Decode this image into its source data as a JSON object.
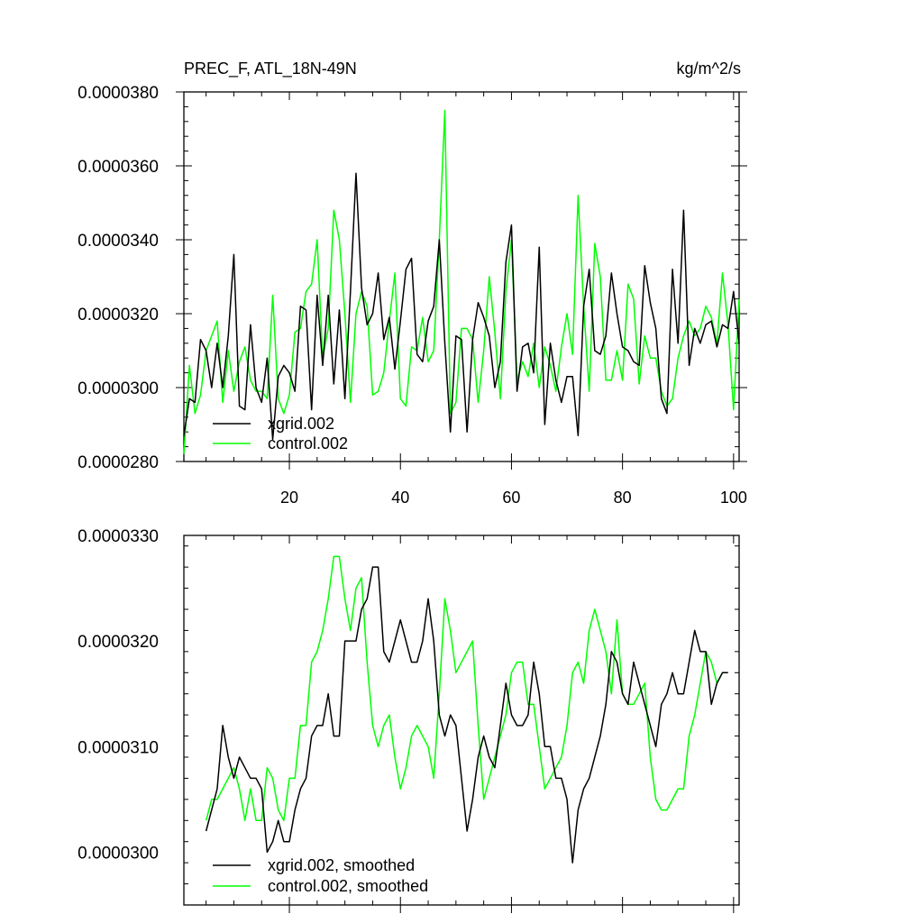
{
  "chart_data": [
    {
      "type": "line",
      "title": "PREC_F, ATL_18N-49N",
      "units": "kg/m^2/s",
      "xlabel": "",
      "ylabel": "",
      "xlim": [
        1,
        101
      ],
      "ylim": [
        2.8e-05,
        3.8e-05
      ],
      "x_ticks": [
        20,
        40,
        60,
        80,
        100
      ],
      "x_tick_labels": [
        "20",
        "40",
        "60",
        "80",
        "100"
      ],
      "y_ticks": [
        2.8e-05,
        3e-05,
        3.2e-05,
        3.4e-05,
        3.6e-05,
        3.8e-05
      ],
      "y_tick_labels": [
        "0.0000280",
        "0.0000300",
        "0.0000320",
        "0.0000340",
        "0.0000360",
        "0.0000380"
      ],
      "grid": false,
      "legend": "bottom-left",
      "series": [
        {
          "name": "xgrid.002",
          "color": "#000000",
          "values": [
            2.87e-05,
            2.97e-05,
            2.96e-05,
            3.13e-05,
            3.1e-05,
            3e-05,
            3.12e-05,
            3e-05,
            3.14e-05,
            3.36e-05,
            2.95e-05,
            2.94e-05,
            3.17e-05,
            3e-05,
            2.96e-05,
            3.08e-05,
            2.86e-05,
            3.03e-05,
            3.06e-05,
            3.04e-05,
            2.99e-05,
            3.22e-05,
            3.21e-05,
            2.94e-05,
            3.25e-05,
            3.06e-05,
            3.25e-05,
            3.01e-05,
            3.21e-05,
            2.97e-05,
            3.26e-05,
            3.58e-05,
            3.27e-05,
            3.17e-05,
            3.2e-05,
            3.31e-05,
            3.13e-05,
            3.19e-05,
            3.05e-05,
            3.18e-05,
            3.32e-05,
            3.35e-05,
            3.09e-05,
            3.07e-05,
            3.18e-05,
            3.22e-05,
            3.4e-05,
            3.12e-05,
            2.88e-05,
            3.14e-05,
            3.13e-05,
            2.88e-05,
            3.13e-05,
            3.23e-05,
            3.19e-05,
            3.14e-05,
            3e-05,
            3.07e-05,
            3.34e-05,
            3.44e-05,
            2.99e-05,
            3.11e-05,
            3.12e-05,
            3.04e-05,
            3.38e-05,
            2.9e-05,
            3.12e-05,
            3.02e-05,
            2.96e-05,
            3.03e-05,
            3.03e-05,
            2.87e-05,
            3.22e-05,
            3.32e-05,
            3.1e-05,
            3.09e-05,
            3.14e-05,
            3.31e-05,
            3.2e-05,
            3.11e-05,
            3.1e-05,
            3.07e-05,
            3.06e-05,
            3.33e-05,
            3.23e-05,
            3.16e-05,
            2.97e-05,
            2.93e-05,
            3.32e-05,
            3.12e-05,
            3.48e-05,
            3.06e-05,
            3.16e-05,
            3.12e-05,
            3.17e-05,
            3.18e-05,
            3.11e-05,
            3.17e-05,
            3.16e-05,
            3.26e-05,
            3.12e-05
          ]
        },
        {
          "name": "control.002",
          "color": "#00ff00",
          "values": [
            2.82e-05,
            3.06e-05,
            2.93e-05,
            2.98e-05,
            3.1e-05,
            3.14e-05,
            3.18e-05,
            2.96e-05,
            3.1e-05,
            2.99e-05,
            3.07e-05,
            3.11e-05,
            3.02e-05,
            2.99e-05,
            2.99e-05,
            2.97e-05,
            3.25e-05,
            2.97e-05,
            2.93e-05,
            2.98e-05,
            3.15e-05,
            3.16e-05,
            3.26e-05,
            3.28e-05,
            3.4e-05,
            3.08e-05,
            3.16e-05,
            3.48e-05,
            3.4e-05,
            3.2e-05,
            2.96e-05,
            3.2e-05,
            3.26e-05,
            3.22e-05,
            2.98e-05,
            2.99e-05,
            3.04e-05,
            3.18e-05,
            3.31e-05,
            2.97e-05,
            2.95e-05,
            3.11e-05,
            3.1e-05,
            3.19e-05,
            3.07e-05,
            3.1e-05,
            3.4e-05,
            3.75e-05,
            2.93e-05,
            2.96e-05,
            3.16e-05,
            3.16e-05,
            3.13e-05,
            2.96e-05,
            3.1e-05,
            3.3e-05,
            3.15e-05,
            2.97e-05,
            3.26e-05,
            3.4e-05,
            3.02e-05,
            3.07e-05,
            3.03e-05,
            3.12e-05,
            3e-05,
            3.11e-05,
            3.06e-05,
            2.99e-05,
            3.11e-05,
            3.2e-05,
            3.09e-05,
            3.52e-05,
            3.22e-05,
            2.99e-05,
            3.39e-05,
            3.3e-05,
            3.02e-05,
            3.02e-05,
            3.1e-05,
            3.02e-05,
            3.28e-05,
            3.24e-05,
            3.01e-05,
            3.14e-05,
            3.08e-05,
            3.08e-05,
            2.99e-05,
            2.95e-05,
            2.97e-05,
            3.08e-05,
            3.14e-05,
            3.18e-05,
            3.14e-05,
            3.16e-05,
            3.22e-05,
            3.19e-05,
            3.12e-05,
            3.31e-05,
            3.17e-05,
            2.94e-05,
            3.24e-05
          ]
        }
      ]
    },
    {
      "type": "line",
      "title": "",
      "xlabel": "",
      "ylabel": "",
      "xlim": [
        1,
        101
      ],
      "ylim": [
        2.95e-05,
        3.3e-05
      ],
      "x_ticks": [
        20,
        40,
        60,
        80,
        100
      ],
      "y_ticks": [
        3e-05,
        3.1e-05,
        3.2e-05,
        3.3e-05
      ],
      "y_tick_labels": [
        "0.0000300",
        "0.0000310",
        "0.0000320",
        "0.0000330"
      ],
      "grid": false,
      "legend": "bottom-left",
      "series": [
        {
          "name": "xgrid.002, smoothed",
          "color": "#000000",
          "x_start": 5,
          "values": [
            3.02e-05,
            3.04e-05,
            3.06e-05,
            3.12e-05,
            3.09e-05,
            3.07e-05,
            3.09e-05,
            3.08e-05,
            3.07e-05,
            3.07e-05,
            3.06e-05,
            3e-05,
            3.01e-05,
            3.03e-05,
            3.01e-05,
            3.01e-05,
            3.04e-05,
            3.06e-05,
            3.07e-05,
            3.11e-05,
            3.12e-05,
            3.12e-05,
            3.15e-05,
            3.11e-05,
            3.11e-05,
            3.2e-05,
            3.2e-05,
            3.2e-05,
            3.23e-05,
            3.24e-05,
            3.27e-05,
            3.27e-05,
            3.19e-05,
            3.18e-05,
            3.2e-05,
            3.22e-05,
            3.2e-05,
            3.18e-05,
            3.18e-05,
            3.2e-05,
            3.24e-05,
            3.2e-05,
            3.13e-05,
            3.11e-05,
            3.13e-05,
            3.12e-05,
            3.07e-05,
            3.02e-05,
            3.05e-05,
            3.09e-05,
            3.11e-05,
            3.09e-05,
            3.08e-05,
            3.12e-05,
            3.16e-05,
            3.13e-05,
            3.12e-05,
            3.12e-05,
            3.13e-05,
            3.18e-05,
            3.15e-05,
            3.1e-05,
            3.1e-05,
            3.07e-05,
            3.07e-05,
            3.05e-05,
            2.99e-05,
            3.04e-05,
            3.06e-05,
            3.07e-05,
            3.09e-05,
            3.11e-05,
            3.14e-05,
            3.19e-05,
            3.18e-05,
            3.15e-05,
            3.14e-05,
            3.18e-05,
            3.16e-05,
            3.14e-05,
            3.12e-05,
            3.1e-05,
            3.14e-05,
            3.15e-05,
            3.17e-05,
            3.15e-05,
            3.15e-05,
            3.18e-05,
            3.21e-05,
            3.19e-05,
            3.19e-05,
            3.14e-05,
            3.16e-05,
            3.17e-05,
            3.17e-05
          ]
        },
        {
          "name": "control.002, smoothed",
          "color": "#00ff00",
          "x_start": 5,
          "values": [
            3.03e-05,
            3.05e-05,
            3.05e-05,
            3.06e-05,
            3.07e-05,
            3.08e-05,
            3.06e-05,
            3.03e-05,
            3.06e-05,
            3.03e-05,
            3.03e-05,
            3.08e-05,
            3.07e-05,
            3.04e-05,
            3.03e-05,
            3.07e-05,
            3.07e-05,
            3.12e-05,
            3.12e-05,
            3.18e-05,
            3.19e-05,
            3.21e-05,
            3.24e-05,
            3.28e-05,
            3.28e-05,
            3.24e-05,
            3.21e-05,
            3.25e-05,
            3.26e-05,
            3.18e-05,
            3.12e-05,
            3.1e-05,
            3.12e-05,
            3.13e-05,
            3.09e-05,
            3.06e-05,
            3.08e-05,
            3.11e-05,
            3.12e-05,
            3.11e-05,
            3.1e-05,
            3.07e-05,
            3.15e-05,
            3.24e-05,
            3.21e-05,
            3.17e-05,
            3.18e-05,
            3.19e-05,
            3.2e-05,
            3.12e-05,
            3.05e-05,
            3.07e-05,
            3.09e-05,
            3.11e-05,
            3.13e-05,
            3.17e-05,
            3.18e-05,
            3.18e-05,
            3.14e-05,
            3.14e-05,
            3.1e-05,
            3.06e-05,
            3.07e-05,
            3.08e-05,
            3.09e-05,
            3.12e-05,
            3.17e-05,
            3.18e-05,
            3.16e-05,
            3.21e-05,
            3.23e-05,
            3.21e-05,
            3.19e-05,
            3.15e-05,
            3.22e-05,
            3.15e-05,
            3.14e-05,
            3.14e-05,
            3.15e-05,
            3.16e-05,
            3.09e-05,
            3.05e-05,
            3.04e-05,
            3.04e-05,
            3.05e-05,
            3.06e-05,
            3.06e-05,
            3.11e-05,
            3.13e-05,
            3.16e-05,
            3.19e-05,
            3.18e-05,
            3.16e-05,
            3.17e-05,
            3.17e-05
          ]
        }
      ]
    }
  ]
}
